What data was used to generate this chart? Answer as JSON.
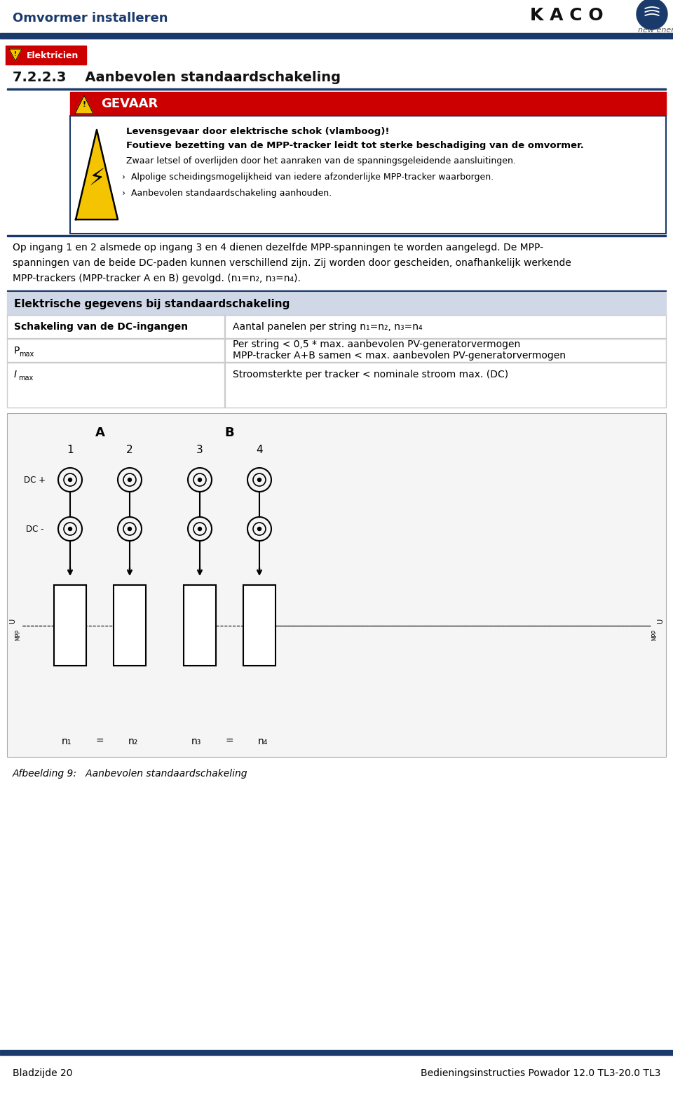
{
  "title_header": "Omvormer installeren",
  "kaco_text": "K A C O",
  "new_energy_text": "new energy.",
  "header_line_color": "#1a3a6b",
  "section_number": "7.2.2.3",
  "section_title": "Aanbevolen standaardschakeling",
  "danger_label": "GEVAAR",
  "danger_bg": "#cc0000",
  "warning_line1": "Levensgevaar door elektrische schok (vlamboog)!",
  "warning_line2": "Foutieve bezetting van de MPP-tracker leidt tot sterke beschadiging van de omvormer.",
  "warning_line3": "Zwaar letsel of overlijden door het aanraken van de spanningsgeleidende aansluitingen.",
  "warning_line4": "Alpolige scheidingsmogelijkheid van iedere afzonderlijke MPP-tracker waarborgen.",
  "warning_line5": "Aanbevolen standaardschakeling aanhouden.",
  "body_line1": "Op ingang 1 en 2 alsmede op ingang 3 en 4 dienen dezelfde MPP-spanningen te worden aangelegd. De MPP-",
  "body_line2": "spanningen van de beide DC-paden kunnen verschillend zijn. Zij worden door gescheiden, onafhankelijk werkende",
  "body_line3": "MPP-trackers (MPP-tracker A en B) gevolgd. (n₁=n₂, n₃=n₄).",
  "table_header": "Elektrische gegevens bij standaardschakeling",
  "table_row1_c1": "Schakeling van de DC-ingangen",
  "table_row1_c2": "Aantal panelen per string n₁=n₂, n₃=n₄",
  "table_row2_c2a": "Per string < 0,5 * max. aanbevolen PV-generatorvermogen",
  "table_row2_c2b": "MPP-tracker A+B samen < max. aanbevolen PV-generatorvermogen",
  "table_row3_c2": "Stroomsterkte per tracker < nominale stroom max. (DC)",
  "diagram_A": "A",
  "diagram_B": "B",
  "dc_plus": "DC +",
  "dc_minus": "DC -",
  "inputs": [
    "1",
    "2",
    "3",
    "4"
  ],
  "caption": "Afbeelding 9:   Aanbevolen standaardschakeling",
  "footer_left": "Bladzijde 20",
  "footer_right": "Bedieningsinstructies Powador 12.0 TL3-20.0 TL3",
  "bg_color": "#ffffff",
  "navy": "#1a3a6b",
  "red": "#cc0000",
  "yellow": "#f5c400",
  "table_bg": "#d0d8e8",
  "mid_gray": "#cccccc",
  "diag_bg": "#f5f5f5"
}
